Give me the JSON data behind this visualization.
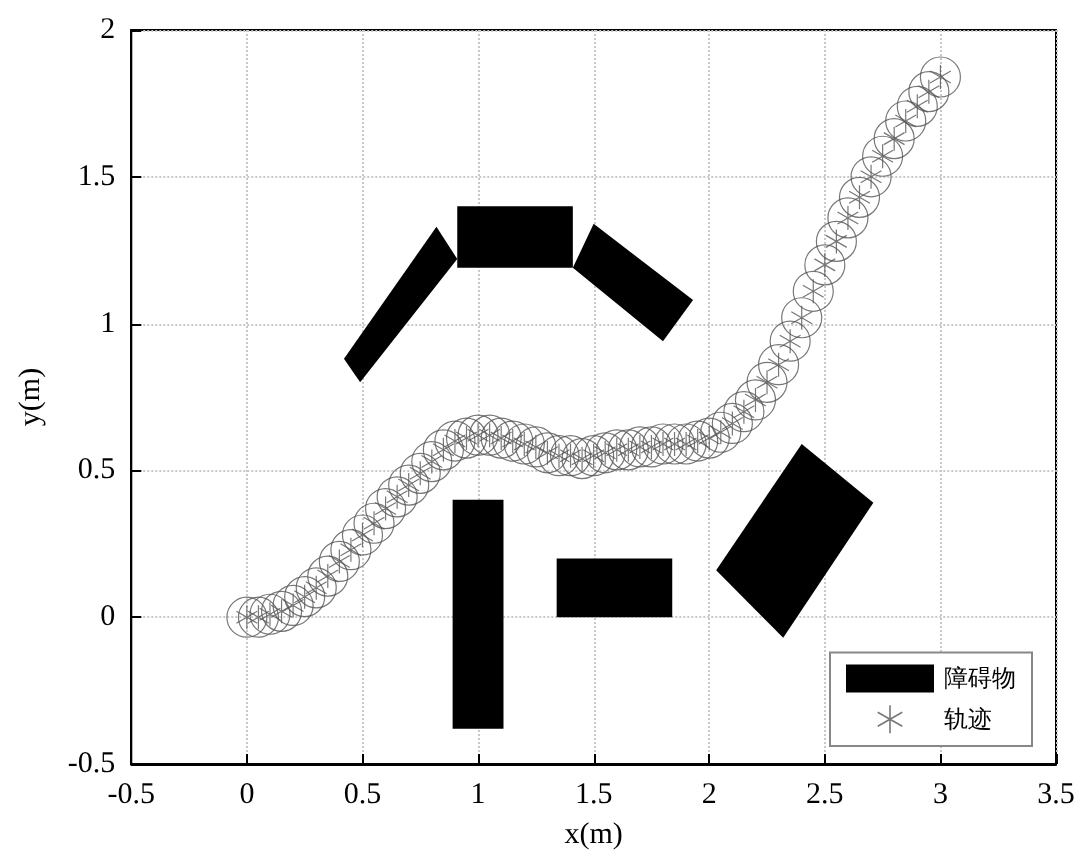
{
  "chart_data": {
    "type": "scatter",
    "xlabel": "x(m)",
    "ylabel": "y(m)",
    "xlim": [
      -0.5,
      3.5
    ],
    "ylim": [
      -0.5,
      2
    ],
    "xticks": [
      -0.5,
      0,
      0.5,
      1,
      1.5,
      2,
      2.5,
      3,
      3.5
    ],
    "yticks": [
      -0.5,
      0,
      0.5,
      1,
      1.5,
      2
    ],
    "grid": true,
    "legend": "bottom right",
    "series": [
      {
        "name": "障碍物",
        "type": "area",
        "color": "#000000",
        "x": [
          0.82,
          0.91,
          0.49,
          0.42,
          null,
          0.91,
          1.41,
          1.41,
          0.91,
          null,
          1.5,
          1.93,
          1.8,
          1.41,
          null,
          0.89,
          1.11,
          1.11,
          0.89,
          null,
          1.34,
          1.84,
          1.84,
          1.34,
          null,
          2.4,
          2.71,
          2.32,
          2.03
        ],
        "values": [
          1.33,
          1.22,
          0.8,
          0.88,
          null,
          1.4,
          1.4,
          1.19,
          1.19,
          null,
          1.34,
          1.08,
          0.94,
          1.19,
          null,
          0.4,
          0.4,
          -0.38,
          -0.38,
          null,
          0.2,
          0.2,
          0,
          0,
          null,
          0.59,
          0.39,
          -0.07,
          0.16
        ]
      },
      {
        "name": "轨迹",
        "marker": "cross",
        "color": "#555555",
        "x": [
          0,
          0.05,
          0.1,
          0.15,
          0.2,
          0.25,
          0.3,
          0.35,
          0.4,
          0.45,
          0.5,
          0.55,
          0.6,
          0.65,
          0.7,
          0.75,
          0.8,
          0.85,
          0.9,
          0.95,
          1.0,
          1.05,
          1.1,
          1.15,
          1.2,
          1.25,
          1.3,
          1.35,
          1.4,
          1.45,
          1.5,
          1.55,
          1.6,
          1.65,
          1.7,
          1.75,
          1.8,
          1.85,
          1.9,
          1.95,
          2.0,
          2.05,
          2.1,
          2.15,
          2.2,
          2.25,
          2.3,
          2.35,
          2.4,
          2.45,
          2.5,
          2.55,
          2.6,
          2.65,
          2.7,
          2.75,
          2.8,
          2.85,
          2.9,
          2.95,
          3.0
        ],
        "values": [
          0,
          0,
          0.01,
          0.02,
          0.04,
          0.07,
          0.1,
          0.14,
          0.19,
          0.23,
          0.28,
          0.32,
          0.37,
          0.41,
          0.45,
          0.49,
          0.53,
          0.57,
          0.6,
          0.61,
          0.62,
          0.62,
          0.61,
          0.6,
          0.59,
          0.58,
          0.56,
          0.55,
          0.55,
          0.54,
          0.55,
          0.56,
          0.57,
          0.57,
          0.58,
          0.58,
          0.59,
          0.59,
          0.59,
          0.6,
          0.61,
          0.63,
          0.66,
          0.7,
          0.74,
          0.8,
          0.86,
          0.94,
          1.02,
          1.11,
          1.2,
          1.28,
          1.36,
          1.43,
          1.5,
          1.57,
          1.63,
          1.69,
          1.74,
          1.79,
          1.84
        ]
      }
    ]
  }
}
